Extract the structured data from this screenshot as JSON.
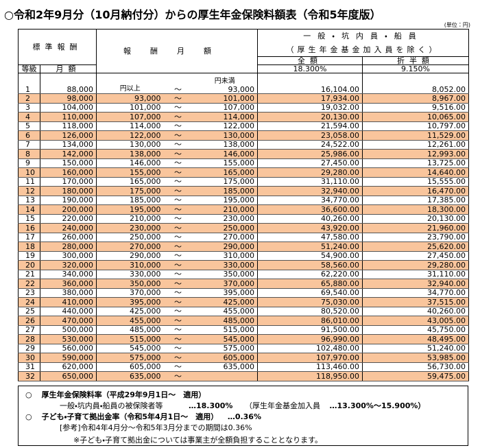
{
  "header": {
    "title": "○令和2年9月分（10月納付分）からの厚生年金保険料額表（令和5年度版）",
    "unit": "(単位：円)"
  },
  "table": {
    "col_standard": "標準報酬",
    "col_remuneration": "報酬月額",
    "col_group": "一般・坑内員・船員",
    "col_group_note": "（厚生年金基金加入員を除く）",
    "col_full": "全額",
    "col_half": "折半額",
    "col_grade": "等級",
    "col_monthly": "月額",
    "rate_full": "18.300%",
    "rate_half": "9.150%",
    "from_label": "円以上",
    "to_label": "円未満",
    "tilde": "～",
    "rows": [
      [
        1,
        "88,000",
        null,
        "93,000",
        "16,104.00",
        "8,052.00"
      ],
      [
        2,
        "98,000",
        "93,000",
        "101,000",
        "17,934.00",
        "8,967.00"
      ],
      [
        3,
        "104,000",
        "101,000",
        "107,000",
        "19,032.00",
        "9,516.00"
      ],
      [
        4,
        "110,000",
        "107,000",
        "114,000",
        "20,130.00",
        "10,065.00"
      ],
      [
        5,
        "118,000",
        "114,000",
        "122,000",
        "21,594.00",
        "10,797.00"
      ],
      [
        6,
        "126,000",
        "122,000",
        "130,000",
        "23,058.00",
        "11,529.00"
      ],
      [
        7,
        "134,000",
        "130,000",
        "138,000",
        "24,522.00",
        "12,261.00"
      ],
      [
        8,
        "142,000",
        "138,000",
        "146,000",
        "25,986.00",
        "12,993.00"
      ],
      [
        9,
        "150,000",
        "146,000",
        "155,000",
        "27,450.00",
        "13,725.00"
      ],
      [
        10,
        "160,000",
        "155,000",
        "165,000",
        "29,280.00",
        "14,640.00"
      ],
      [
        11,
        "170,000",
        "165,000",
        "175,000",
        "31,110.00",
        "15,555.00"
      ],
      [
        12,
        "180,000",
        "175,000",
        "185,000",
        "32,940.00",
        "16,470.00"
      ],
      [
        13,
        "190,000",
        "185,000",
        "195,000",
        "34,770.00",
        "17,385.00"
      ],
      [
        14,
        "200,000",
        "195,000",
        "210,000",
        "36,600.00",
        "18,300.00"
      ],
      [
        15,
        "220,000",
        "210,000",
        "230,000",
        "40,260.00",
        "20,130.00"
      ],
      [
        16,
        "240,000",
        "230,000",
        "250,000",
        "43,920.00",
        "21,960.00"
      ],
      [
        17,
        "260,000",
        "250,000",
        "270,000",
        "47,580.00",
        "23,790.00"
      ],
      [
        18,
        "280,000",
        "270,000",
        "290,000",
        "51,240.00",
        "25,620.00"
      ],
      [
        19,
        "300,000",
        "290,000",
        "310,000",
        "54,900.00",
        "27,450.00"
      ],
      [
        20,
        "320,000",
        "310,000",
        "330,000",
        "58,560.00",
        "29,280.00"
      ],
      [
        21,
        "340,000",
        "330,000",
        "350,000",
        "62,220.00",
        "31,110.00"
      ],
      [
        22,
        "360,000",
        "350,000",
        "370,000",
        "65,880.00",
        "32,940.00"
      ],
      [
        23,
        "380,000",
        "370,000",
        "395,000",
        "69,540.00",
        "34,770.00"
      ],
      [
        24,
        "410,000",
        "395,000",
        "425,000",
        "75,030.00",
        "37,515.00"
      ],
      [
        25,
        "440,000",
        "425,000",
        "455,000",
        "80,520.00",
        "40,260.00"
      ],
      [
        26,
        "470,000",
        "455,000",
        "485,000",
        "86,010.00",
        "43,005.00"
      ],
      [
        27,
        "500,000",
        "485,000",
        "515,000",
        "91,500.00",
        "45,750.00"
      ],
      [
        28,
        "530,000",
        "515,000",
        "545,000",
        "96,990.00",
        "48,495.00"
      ],
      [
        29,
        "560,000",
        "545,000",
        "575,000",
        "102,480.00",
        "51,240.00"
      ],
      [
        30,
        "590,000",
        "575,000",
        "605,000",
        "107,970.00",
        "53,985.00"
      ],
      [
        31,
        "620,000",
        "605,000",
        "635,000",
        "113,460.00",
        "56,730.00"
      ],
      [
        32,
        "650,000",
        "635,000",
        null,
        "118,950.00",
        "59,475.00"
      ]
    ]
  },
  "notes": {
    "marker": "○",
    "pension_heading": "厚生年金保険料率（平成29年9月1日～　適用）",
    "pension_general": "一般・坑内員・船員の被保険者等",
    "pension_general_rate": "…18.300%",
    "pension_fund": "（厚生年金基金加入員",
    "pension_fund_rate": "…13.300%～15.900%）",
    "child_heading": "子ども・子育て拠出金率（令和5年4月1日～　適用）",
    "child_rate": "…0.36%",
    "reference": "[参考]令和4年4月分～令和5年3月分までの期間は0.36%",
    "remark": "※子ども・子育て拠出金については事業主が全額負担することとなります。"
  }
}
